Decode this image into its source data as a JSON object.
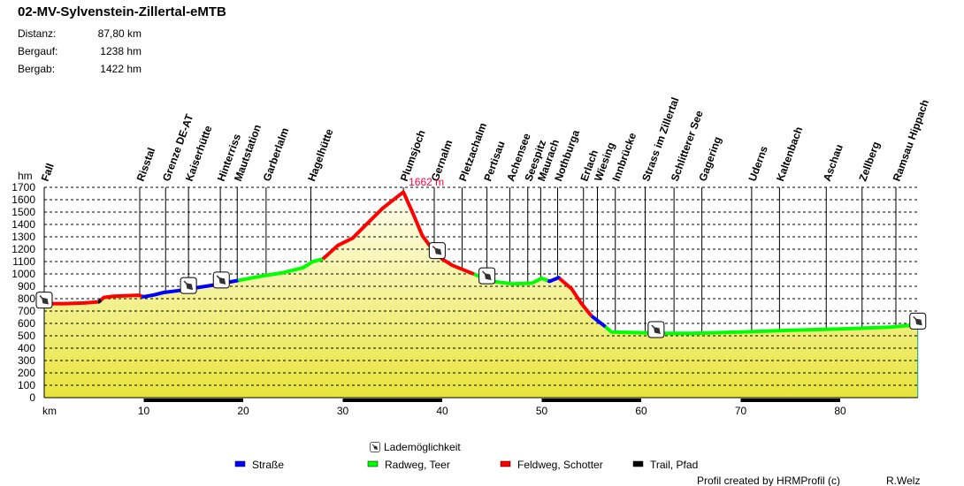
{
  "header": {
    "title": "02-MV-Sylvenstein-Zillertal-eMTB",
    "stats": [
      {
        "label": "Distanz:",
        "value": "87,80 km"
      },
      {
        "label": "Bergauf:",
        "value": "1238 hm"
      },
      {
        "label": "Bergab:",
        "value": "1422 hm"
      }
    ]
  },
  "chart_data": {
    "type": "area",
    "title": "02-MV-Sylvenstein-Zillertal-eMTB",
    "xlabel": "km",
    "ylabel": "hm",
    "xlim": [
      0,
      87.8
    ],
    "ylim": [
      0,
      1700
    ],
    "xticks": [
      10,
      20,
      30,
      40,
      50,
      60,
      70,
      80
    ],
    "yticks": [
      0,
      100,
      200,
      300,
      400,
      500,
      600,
      700,
      800,
      900,
      1000,
      1100,
      1200,
      1300,
      1400,
      1500,
      1600,
      1700
    ],
    "grid": true,
    "max_label": "1662 m",
    "max_point": {
      "km": 36.1,
      "hm": 1662
    },
    "profile": [
      [
        0,
        760
      ],
      [
        2,
        760
      ],
      [
        4,
        765
      ],
      [
        5.5,
        775
      ],
      [
        6,
        810
      ],
      [
        7,
        820
      ],
      [
        9.5,
        828
      ],
      [
        10,
        815
      ],
      [
        11,
        830
      ],
      [
        12,
        850
      ],
      [
        14,
        870
      ],
      [
        15,
        885
      ],
      [
        17,
        910
      ],
      [
        19,
        940
      ],
      [
        20,
        955
      ],
      [
        22,
        985
      ],
      [
        24,
        1010
      ],
      [
        26,
        1050
      ],
      [
        27,
        1100
      ],
      [
        28,
        1120
      ],
      [
        29.5,
        1230
      ],
      [
        31,
        1290
      ],
      [
        32,
        1370
      ],
      [
        34,
        1530
      ],
      [
        36.1,
        1662
      ],
      [
        37,
        1500
      ],
      [
        38,
        1310
      ],
      [
        39,
        1200
      ],
      [
        40,
        1120
      ],
      [
        41,
        1070
      ],
      [
        43,
        1005
      ],
      [
        45,
        940
      ],
      [
        47,
        920
      ],
      [
        49,
        925
      ],
      [
        50,
        965
      ],
      [
        50.8,
        940
      ],
      [
        51.7,
        970
      ],
      [
        53,
        880
      ],
      [
        54,
        760
      ],
      [
        55,
        660
      ],
      [
        56.3,
        580
      ],
      [
        57,
        530
      ],
      [
        60,
        525
      ],
      [
        62,
        520
      ],
      [
        65,
        520
      ],
      [
        70,
        530
      ],
      [
        75,
        545
      ],
      [
        80,
        555
      ],
      [
        85,
        570
      ],
      [
        87.8,
        590
      ]
    ],
    "surface_segments": [
      {
        "from": 0,
        "to": 5.4,
        "type": "Feldweg, Schotter"
      },
      {
        "from": 5.4,
        "to": 5.7,
        "type": "Trail, Pfad"
      },
      {
        "from": 5.7,
        "to": 9.8,
        "type": "Feldweg, Schotter"
      },
      {
        "from": 9.8,
        "to": 19.5,
        "type": "Straße"
      },
      {
        "from": 19.5,
        "to": 28,
        "type": "Radweg, Teer"
      },
      {
        "from": 28,
        "to": 43.2,
        "type": "Feldweg, Schotter"
      },
      {
        "from": 43.2,
        "to": 50.6,
        "type": "Radweg, Teer"
      },
      {
        "from": 50.6,
        "to": 51.8,
        "type": "Straße"
      },
      {
        "from": 51.8,
        "to": 55,
        "type": "Feldweg, Schotter"
      },
      {
        "from": 55,
        "to": 56.4,
        "type": "Straße"
      },
      {
        "from": 56.4,
        "to": 87.8,
        "type": "Radweg, Teer"
      }
    ],
    "charging_points_km": [
      0,
      14.5,
      17.8,
      39.5,
      44.5,
      61.5,
      87.8
    ],
    "waypoints": [
      {
        "name": "Fall",
        "km": 0
      },
      {
        "name": "Risstal",
        "km": 9.6
      },
      {
        "name": "Grenze DE-AT",
        "km": 12.2
      },
      {
        "name": "Kaiserhütte",
        "km": 14.5
      },
      {
        "name": "Hinterriss",
        "km": 17.7
      },
      {
        "name": "Mautstation",
        "km": 19.4
      },
      {
        "name": "Garberlalm",
        "km": 22.3
      },
      {
        "name": "Hagelhütte",
        "km": 26.8
      },
      {
        "name": "Plumsjoch",
        "km": 36.1
      },
      {
        "name": "Gernalm",
        "km": 39.2
      },
      {
        "name": "Pletzachalm",
        "km": 42
      },
      {
        "name": "Pertisau",
        "km": 44.5
      },
      {
        "name": "Achensee",
        "km": 46.8
      },
      {
        "name": "Seespitz",
        "km": 48.6
      },
      {
        "name": "Maurach",
        "km": 49.9
      },
      {
        "name": "Nothburga",
        "km": 51.6
      },
      {
        "name": "Erlach",
        "km": 54.2
      },
      {
        "name": "Wiesing",
        "km": 55.6
      },
      {
        "name": "Innbrücke",
        "km": 57.4
      },
      {
        "name": "Strass im Zillertal",
        "km": 60.4
      },
      {
        "name": "Schlitterer See",
        "km": 63.3
      },
      {
        "name": "Gagering",
        "km": 66.1
      },
      {
        "name": "Uderns",
        "km": 71.1
      },
      {
        "name": "Kaltenbach",
        "km": 73.9
      },
      {
        "name": "Aschau",
        "km": 78.6
      },
      {
        "name": "Zellberg",
        "km": 82.2
      },
      {
        "name": "Ramsau Hippach",
        "km": 85.6
      }
    ],
    "legend": {
      "charging": "Lademöglichkeit",
      "items": [
        {
          "label": "Straße",
          "color": "#0000ff"
        },
        {
          "label": "Radweg, Teer",
          "color": "#00ff00"
        },
        {
          "label": "Feldweg, Schotter",
          "color": "#ff0000"
        },
        {
          "label": "Trail, Pfad",
          "color": "#000000"
        }
      ]
    }
  },
  "footer": {
    "credit": "Profil created by HRMProfil (c)",
    "author": "R.Welz"
  }
}
